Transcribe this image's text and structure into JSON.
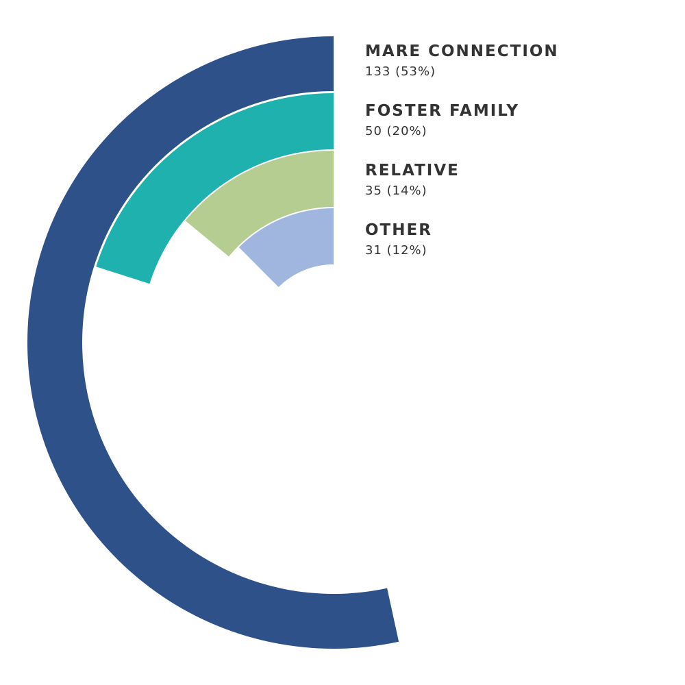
{
  "chart_data": {
    "type": "radial-bar",
    "categories": [
      "MARE CONNECTION",
      "FOSTER FAMILY",
      "RELATIVE",
      "OTHER"
    ],
    "values": [
      133,
      50,
      35,
      31
    ],
    "value_labels": [
      "133 (53%)",
      "50 (20%)",
      "35 (14%)",
      "31 (12%)"
    ],
    "colors": [
      "#2f5189",
      "#1fb1ae",
      "#b5cd91",
      "#a0b6de"
    ]
  }
}
